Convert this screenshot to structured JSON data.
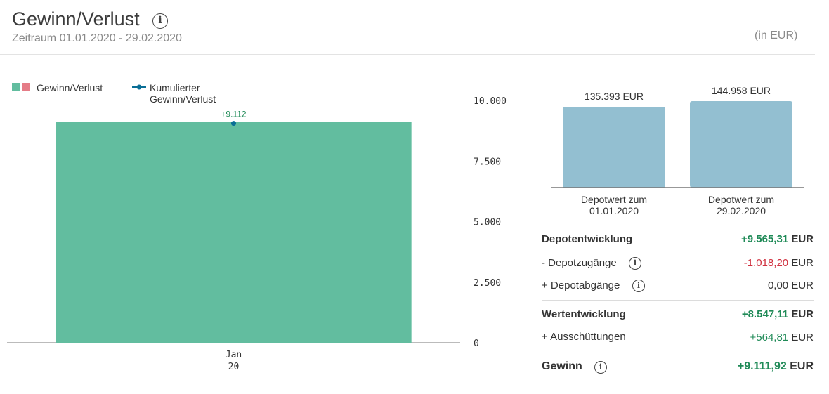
{
  "header": {
    "title": "Gewinn/Verlust",
    "info_icon": "info-icon",
    "subtitle": "Zeitraum 01.01.2020 - 29.02.2020",
    "currency_note": "(in EUR)"
  },
  "legend": {
    "gain_loss": "Gewinn/Verlust",
    "cumulative": "Kumulierter Gewinn/Verlust"
  },
  "colors": {
    "positive_bar": "#62bd9f",
    "negative_bar": "#e57c87",
    "cumulative_line": "#0a6e96",
    "depot_bar": "#93bfd1",
    "positive_text": "#1f8a57",
    "negative_text": "#d0303f"
  },
  "chart_data": [
    {
      "type": "bar",
      "title": "Gewinn/Verlust",
      "categories": [
        "Jan 20"
      ],
      "category_lines": [
        [
          "Jan",
          "20"
        ]
      ],
      "series": [
        {
          "name": "Gewinn/Verlust",
          "values": [
            9112
          ]
        },
        {
          "name": "Kumulierter Gewinn/Verlust",
          "values": [
            9112
          ],
          "labels": [
            "+9.112"
          ]
        }
      ],
      "ylim": [
        0,
        10000
      ],
      "yticks": [
        0,
        2500,
        5000,
        7500,
        10000
      ],
      "ytick_labels": [
        "0",
        "2.500",
        "5.000",
        "7.500",
        "10.000"
      ],
      "legend_position": "top-left"
    },
    {
      "type": "bar",
      "title": "Depotwert",
      "categories": [
        "Depotwert zum 01.01.2020",
        "Depotwert zum 29.02.2020"
      ],
      "category_lines": [
        [
          "Depotwert zum",
          "01.01.2020"
        ],
        [
          "Depotwert zum",
          "29.02.2020"
        ]
      ],
      "values": [
        135393,
        144958
      ],
      "value_labels": [
        "135.393 EUR",
        "144.958 EUR"
      ],
      "ylim": [
        0,
        144958
      ]
    }
  ],
  "summary": {
    "depotentwicklung": {
      "label": "Depotentwicklung",
      "value": "+9.565,31",
      "unit": "EUR"
    },
    "depotzugaenge": {
      "label": "- Depotzugänge",
      "value": "-1.018,20",
      "unit": "EUR"
    },
    "depotabgaenge": {
      "label": "+ Depotabgänge",
      "value": "0,00",
      "unit": "EUR"
    },
    "wertentwicklung": {
      "label": "Wertentwicklung",
      "value": "+8.547,11",
      "unit": "EUR"
    },
    "ausschuettungen": {
      "label": "+ Ausschüttungen",
      "value": "+564,81",
      "unit": "EUR"
    },
    "gewinn": {
      "label": "Gewinn",
      "value": "+9.111,92",
      "unit": "EUR"
    }
  }
}
